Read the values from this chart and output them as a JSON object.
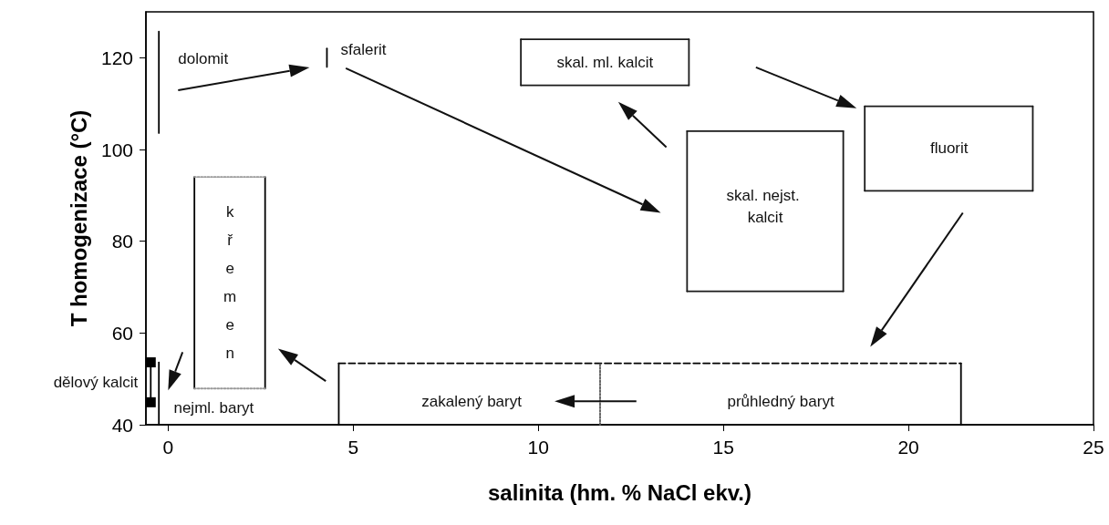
{
  "chart_data": {
    "type": "line",
    "xlabel": "salinita (hm. % NaCl ekv.)",
    "ylabel": "T homogenizace (°C)",
    "xlim": [
      -0.6,
      25
    ],
    "ylim": [
      40,
      130
    ],
    "xticks": [
      0,
      5,
      10,
      15,
      20,
      25
    ],
    "yticks": [
      40,
      60,
      80,
      100,
      120
    ],
    "grid": false,
    "marker": "none",
    "line_style": "solid",
    "series": [
      {
        "color": "#000000",
        "x": [
          -0.25,
          -0.25
        ],
        "values": [
          103.6,
          125.7
        ]
      },
      {
        "color": "#000000",
        "x": [
          4.29,
          4.29
        ],
        "values": [
          118,
          122
        ]
      },
      {
        "color": "#1a1a1a",
        "x": [
          9.53,
          14.07
        ],
        "values": [
          114,
          114
        ]
      },
      {
        "color": "#1a1a1a",
        "x": [
          9.53,
          14.07
        ],
        "values": [
          124,
          124
        ]
      },
      {
        "color": "#1a1a1a",
        "x": [
          9.53,
          9.53
        ],
        "values": [
          114,
          124
        ]
      },
      {
        "color": "#1a1a1a",
        "x": [
          14.07,
          14.07
        ],
        "values": [
          114,
          124
        ]
      },
      {
        "color": "#1a1a1a",
        "x": [
          14.02,
          18.24
        ],
        "values": [
          69.1,
          69.1
        ]
      },
      {
        "color": "#1a1a1a",
        "x": [
          14.02,
          18.24
        ],
        "values": [
          104,
          104
        ]
      },
      {
        "color": "#1a1a1a",
        "x": [
          14.02,
          14.02
        ],
        "values": [
          69.1,
          104
        ]
      },
      {
        "color": "#1a1a1a",
        "x": [
          18.24,
          18.24
        ],
        "values": [
          69.1,
          104
        ]
      },
      {
        "color": "#1a1a1a",
        "x": [
          18.82,
          23.36
        ],
        "values": [
          91,
          91
        ]
      },
      {
        "color": "#1a1a1a",
        "x": [
          18.82,
          23.36
        ],
        "values": [
          109.4,
          109.4
        ]
      },
      {
        "color": "#1a1a1a",
        "x": [
          18.82,
          18.82
        ],
        "values": [
          91,
          109.4
        ]
      },
      {
        "color": "#1a1a1a",
        "x": [
          23.36,
          23.36
        ],
        "values": [
          91,
          109.4
        ]
      },
      {
        "color": "#000000",
        "x": [
          0.71,
          0.71
        ],
        "values": [
          47.9,
          94
        ]
      },
      {
        "color": "#000000",
        "x": [
          2.62,
          2.62
        ],
        "values": [
          47.9,
          94
        ]
      },
      {
        "color": "#999999",
        "line_style": "dotted",
        "x": [
          0.71,
          2.62
        ],
        "values": [
          94,
          94
        ]
      },
      {
        "color": "#999999",
        "line_style": "dotted",
        "x": [
          0.71,
          2.62
        ],
        "values": [
          47.9,
          47.9
        ]
      },
      {
        "color": "#000000",
        "x": [
          4.61,
          4.61
        ],
        "values": [
          40,
          53.4
        ]
      },
      {
        "color": "#000000",
        "x": [
          21.42,
          21.42
        ],
        "values": [
          40,
          53.4
        ]
      },
      {
        "color": "#000000",
        "line_style": "dashed",
        "x": [
          4.61,
          21.42
        ],
        "values": [
          53.4,
          53.4
        ]
      },
      {
        "color": "#555555",
        "line_style": "dotted",
        "x": [
          11.67,
          11.67
        ],
        "values": [
          40,
          53.4
        ]
      },
      {
        "color": "#000000",
        "x": [
          -0.25,
          -0.25
        ],
        "values": [
          40,
          53.6
        ]
      },
      {
        "color": "#000000",
        "marker": "square",
        "x": [
          -0.47,
          -0.47
        ],
        "values": [
          53.6,
          44.9
        ]
      }
    ],
    "annotations": [
      "dolomit",
      "sfalerit",
      "skal. ml. kalcit",
      "skal. nejst. kalcit",
      "fluorit",
      "křemen",
      "dělový kalcit",
      "nejml. baryt",
      "zakalený baryt",
      "průhledný baryt"
    ]
  }
}
